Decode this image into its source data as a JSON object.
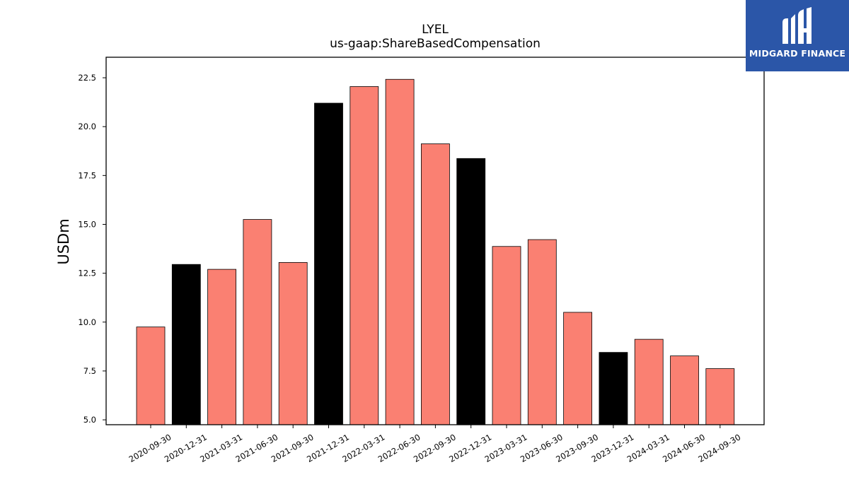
{
  "chart_data": {
    "type": "bar",
    "title": "LYEL",
    "subtitle": "us-gaap:ShareBasedCompensation",
    "xlabel": "",
    "ylabel": "USDm",
    "ylim": [
      4.75,
      23.55
    ],
    "yticks": [
      "5.0",
      "7.5",
      "10.0",
      "12.5",
      "15.0",
      "17.5",
      "20.0",
      "22.5"
    ],
    "categories": [
      "2020-09-30",
      "2020-12-31",
      "2021-03-31",
      "2021-06-30",
      "2021-09-30",
      "2021-12-31",
      "2022-03-31",
      "2022-06-30",
      "2022-09-30",
      "2022-12-31",
      "2023-03-31",
      "2023-06-30",
      "2023-09-30",
      "2023-12-31",
      "2024-03-31",
      "2024-06-30",
      "2024-09-30"
    ],
    "values": [
      9.75,
      12.95,
      12.7,
      15.25,
      13.05,
      21.2,
      22.05,
      22.42,
      19.12,
      18.37,
      13.87,
      14.22,
      10.5,
      8.45,
      9.12,
      8.27,
      7.62
    ],
    "bar_colors": [
      "#fa8072",
      "#000000",
      "#fa8072",
      "#fa8072",
      "#fa8072",
      "#000000",
      "#fa8072",
      "#fa8072",
      "#fa8072",
      "#000000",
      "#fa8072",
      "#fa8072",
      "#fa8072",
      "#000000",
      "#fa8072",
      "#fa8072",
      "#fa8072"
    ],
    "grid": false,
    "legend": "none"
  },
  "logo": {
    "text": "MIDGARD FINANCE",
    "background": "#2b56a8",
    "icon": "midgard-m-logo-icon"
  }
}
